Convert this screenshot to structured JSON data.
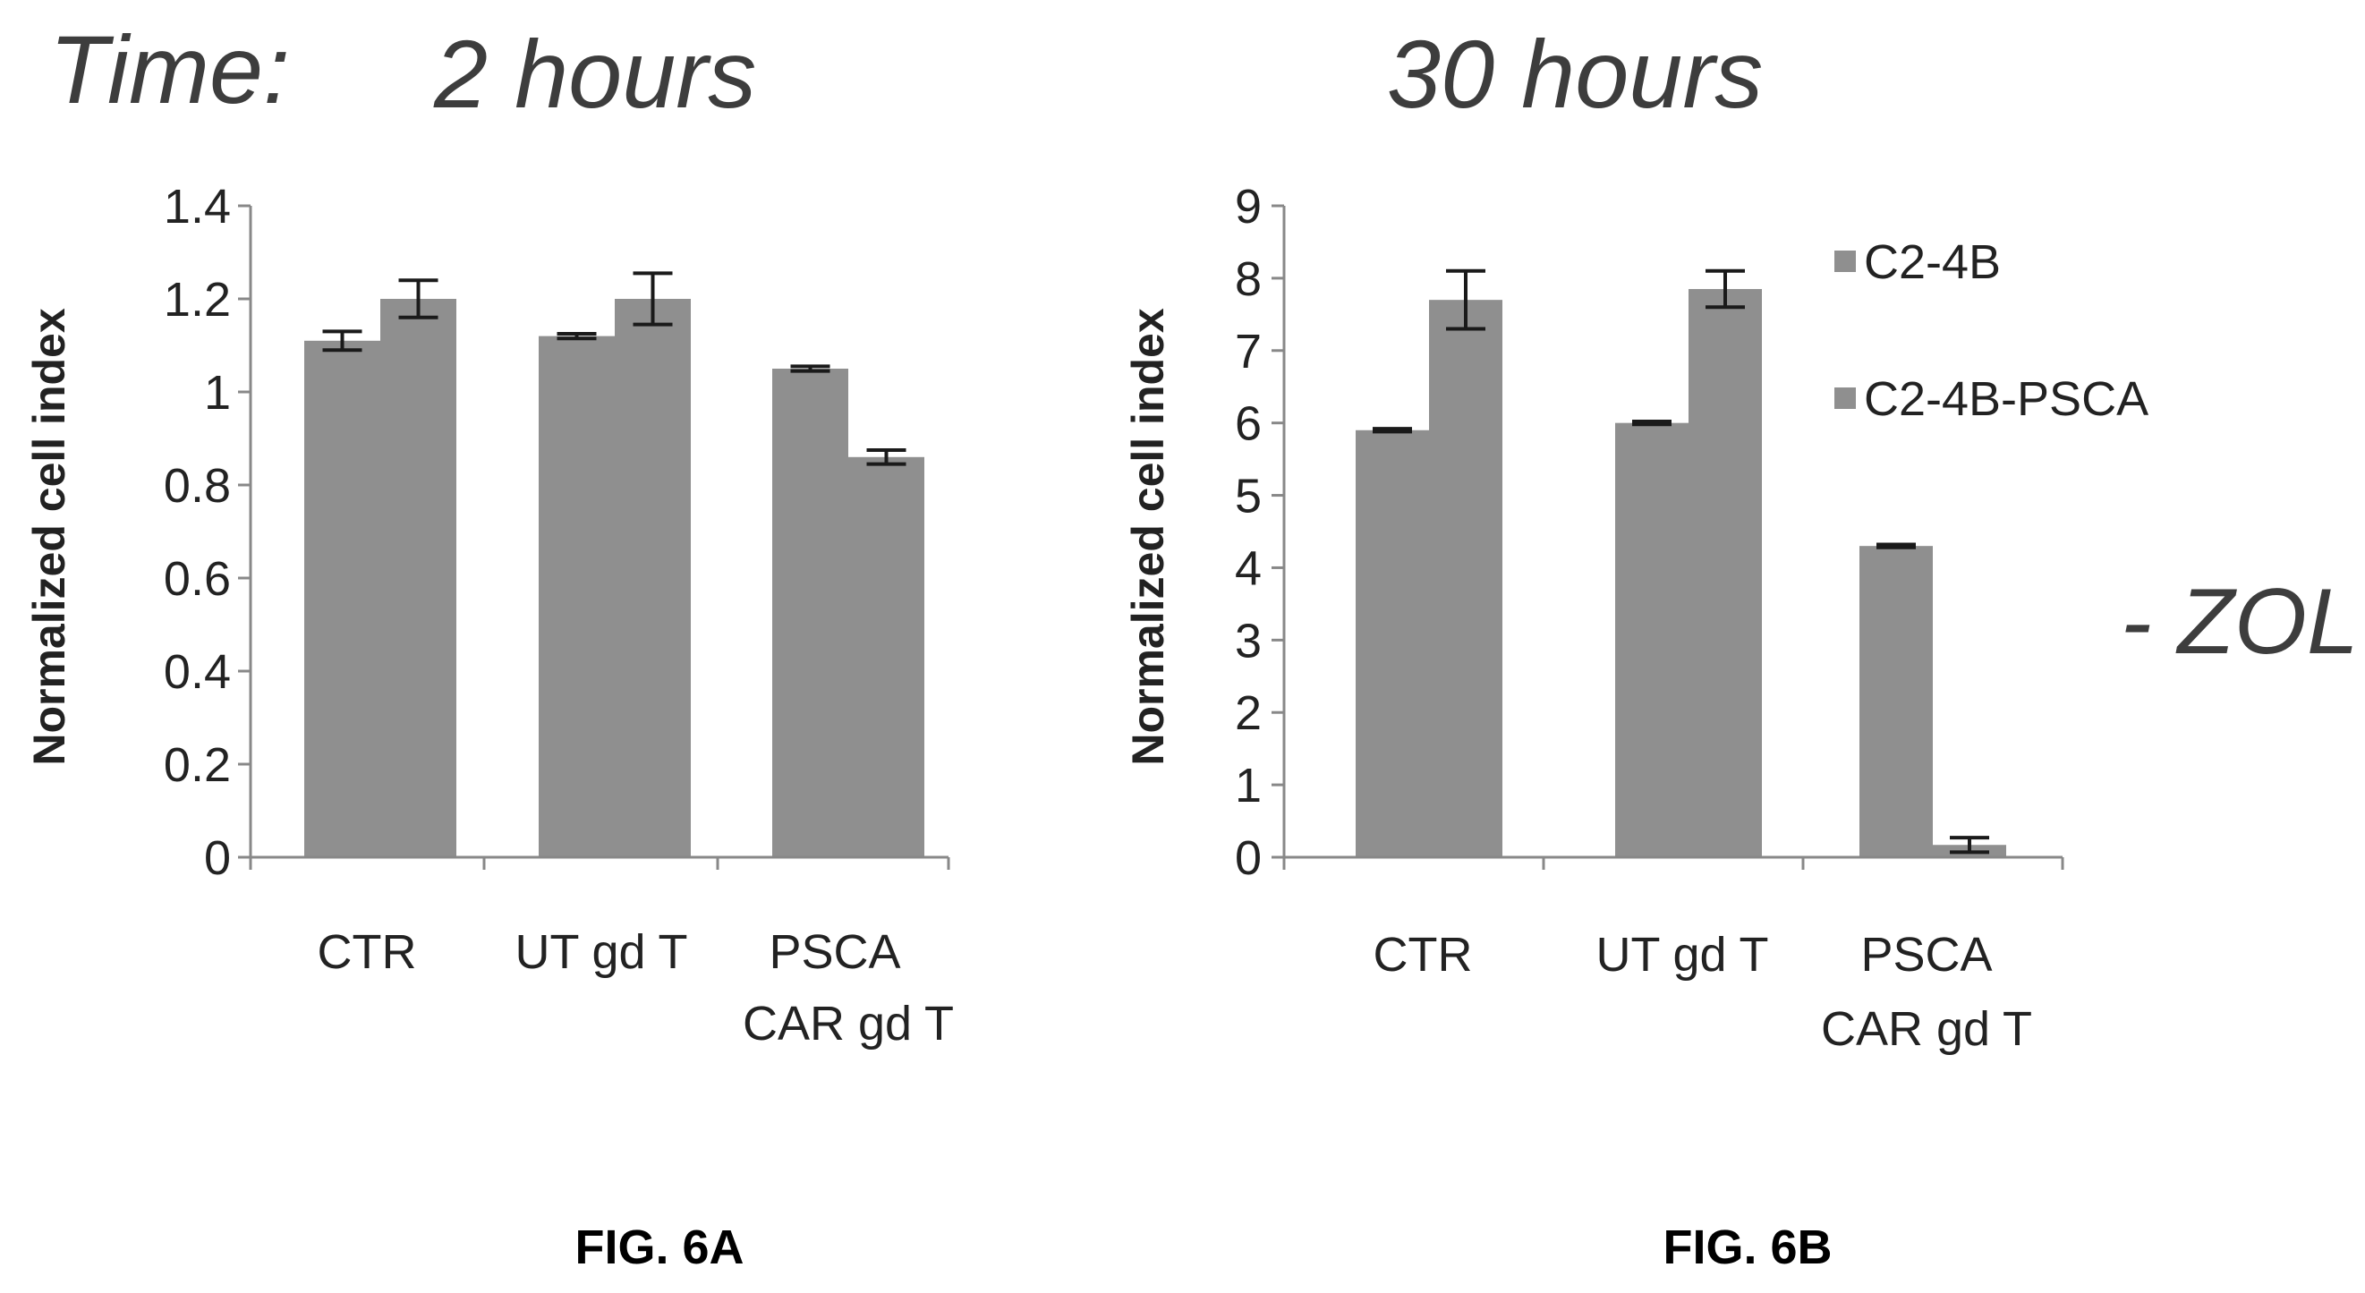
{
  "colors": {
    "bar": "#8f8f8f",
    "axis": "#888888",
    "error": "#1a1a1a",
    "text": "#222222",
    "title": "#3d3d3d"
  },
  "side_note": "- ZOL",
  "chart_data": [
    {
      "type": "bar",
      "title_prefix": "Time:",
      "title": "2 hours",
      "figure_label": "FIG. 6A",
      "ylabel": "Normalized cell index",
      "xlabel": "",
      "ylim": [
        0,
        1.4
      ],
      "yticks": [
        0,
        0.2,
        0.4,
        0.6,
        0.8,
        1,
        1.2,
        1.4
      ],
      "ytick_labels": [
        "0",
        "0.2",
        "0.4",
        "0.6",
        "0.8",
        "1",
        "1.2",
        "1.4"
      ],
      "categories": [
        [
          "CTR"
        ],
        [
          "UT gd T"
        ],
        [
          "PSCA",
          "CAR gd T"
        ]
      ],
      "series": [
        {
          "name": "C2-4B",
          "values": [
            1.11,
            1.12,
            1.05
          ],
          "errors": [
            0.02,
            0.005,
            0.005
          ]
        },
        {
          "name": "C2-4B-PSCA",
          "values": [
            1.2,
            1.2,
            0.86
          ],
          "errors": [
            0.04,
            0.055,
            0.015
          ]
        }
      ],
      "grid": false,
      "legend": "none"
    },
    {
      "type": "bar",
      "title_prefix": "",
      "title": "30 hours",
      "figure_label": "FIG. 6B",
      "ylabel": "Normalized cell  index",
      "xlabel": "",
      "ylim": [
        0,
        9
      ],
      "yticks": [
        0,
        1,
        2,
        3,
        4,
        5,
        6,
        7,
        8,
        9
      ],
      "ytick_labels": [
        "0",
        "1",
        "2",
        "3",
        "4",
        "5",
        "6",
        "7",
        "8",
        "9"
      ],
      "categories": [
        [
          "CTR"
        ],
        [
          "UT gd T"
        ],
        [
          "PSCA",
          "CAR gd T"
        ]
      ],
      "series": [
        {
          "name": "C2-4B",
          "values": [
            5.9,
            6.0,
            4.3
          ],
          "errors": [
            0.02,
            0.02,
            0.02
          ]
        },
        {
          "name": "C2-4B-PSCA",
          "values": [
            7.7,
            7.85,
            0.17
          ],
          "errors": [
            0.4,
            0.25,
            0.1
          ]
        }
      ],
      "grid": false,
      "legend": "right"
    }
  ]
}
